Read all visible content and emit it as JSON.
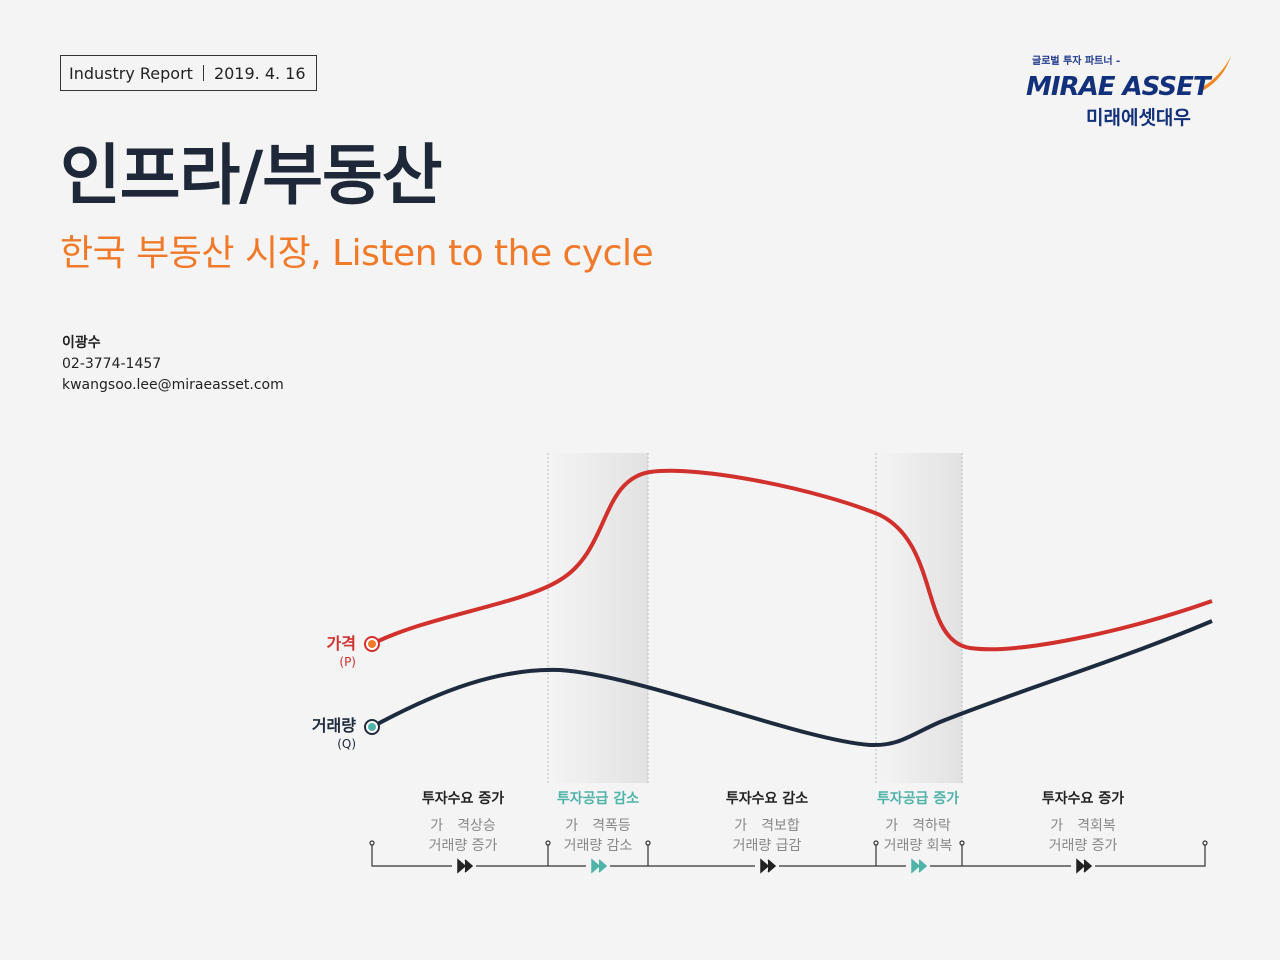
{
  "header": {
    "report_type": "Industry Report",
    "date": "2019. 4. 16"
  },
  "logo": {
    "tagline": "글로벌 투자 파트너 -",
    "brand": "MIRAE ASSET",
    "brand_korean": "미래에셋대우"
  },
  "title": "인프라/부동산",
  "subtitle": "한국 부동산 시장, Listen to the cycle",
  "author": {
    "name": "이광수",
    "phone": "02-3774-1457",
    "email": "kwangsoo.lee@miraeasset.com"
  },
  "cycle": {
    "price_label": "가격",
    "price_symbol": "(P)",
    "volume_label": "거래량",
    "volume_symbol": "(Q)",
    "price_color": "#d0312d",
    "volume_color": "#1e2a3d",
    "phases": [
      {
        "heading": "투자수요 증가",
        "line1": "가　격상승",
        "line2": "거래량 증가",
        "highlight": false
      },
      {
        "heading": "투자공급 감소",
        "line1": "가　격폭등",
        "line2": "거래량 감소",
        "highlight": true
      },
      {
        "heading": "투자수요 감소",
        "line1": "가　격보합",
        "line2": "거래량 급감",
        "highlight": false
      },
      {
        "heading": "투자공급 증가",
        "line1": "가　격하락",
        "line2": "거래량 회복",
        "highlight": true
      },
      {
        "heading": "투자수요 증가",
        "line1": "가　격회복",
        "line2": "거래량 증가",
        "highlight": false
      }
    ]
  }
}
